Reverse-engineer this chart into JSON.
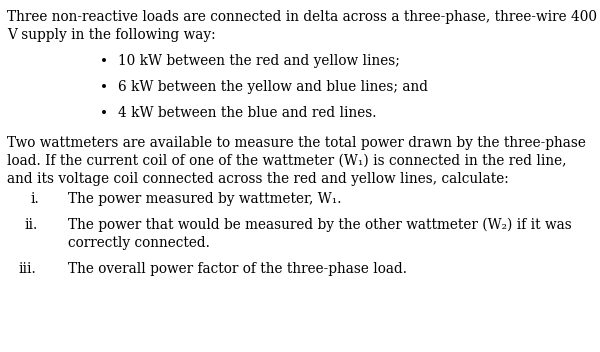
{
  "bg_color": "#ffffff",
  "text_color": "#000000",
  "paragraph1_line1": "Three non-reactive loads are connected in delta across a three-phase, three-wire 400",
  "paragraph1_line2": "V supply in the following way:",
  "bullets": [
    "10 kW between the red and yellow lines;",
    "6 kW between the yellow and blue lines; and",
    "4 kW between the blue and red lines."
  ],
  "paragraph2_line1": "Two wattmeters are available to measure the total power drawn by the three-phase",
  "paragraph2_line2": "load. If the current coil of one of the wattmeter (W₁) is connected in the red line,",
  "paragraph2_line3": "and its voltage coil connected across the red and yellow lines, calculate:",
  "item_i_label": "i.",
  "item_i_text": "The power measured by wattmeter, W₁.",
  "item_ii_label": "ii.",
  "item_ii_text1": "The power that would be measured by the other wattmeter (W₂) if it was",
  "item_ii_text2": "correctly connected.",
  "item_iii_label": "iii.",
  "item_iii_text": "The overall power factor of the three-phase load.",
  "font_size": 9.8,
  "font_family": "DejaVu Serif",
  "figwidth": 6.0,
  "figheight": 3.52,
  "dpi": 100
}
